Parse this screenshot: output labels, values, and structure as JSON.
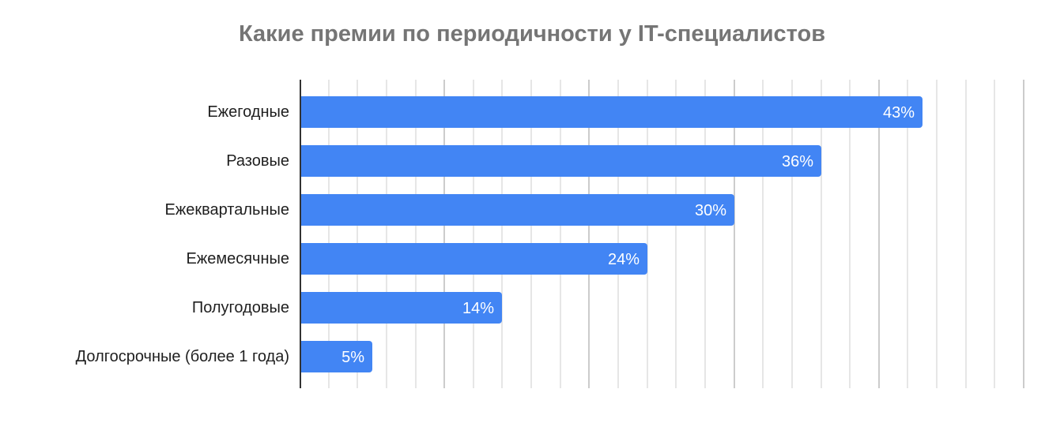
{
  "chart_data": {
    "type": "bar",
    "orientation": "horizontal",
    "title": "Какие премии по периодичности у IT-специалистов",
    "categories": [
      "Ежегодные",
      "Разовые",
      "Ежеквартальные",
      "Ежемесячные",
      "Полугодовые",
      "Долгосрочные (более 1 года)"
    ],
    "values": [
      43,
      36,
      30,
      24,
      14,
      5
    ],
    "value_labels": [
      "43%",
      "36%",
      "30%",
      "24%",
      "14%",
      "5%"
    ],
    "xlabel": "",
    "ylabel": "",
    "xlim": [
      0,
      50
    ],
    "grid": true,
    "grid_minor_step": 2,
    "grid_major_step": 10,
    "tick_labels_visible": false,
    "legend": null,
    "bar_color": "#4285f4"
  },
  "colors": {
    "bar": "#4285f4",
    "title": "#757575",
    "label": "#1f1f1f",
    "grid_minor": "#e6e6e6",
    "grid_major": "#cccccc",
    "axis": "#333333"
  }
}
